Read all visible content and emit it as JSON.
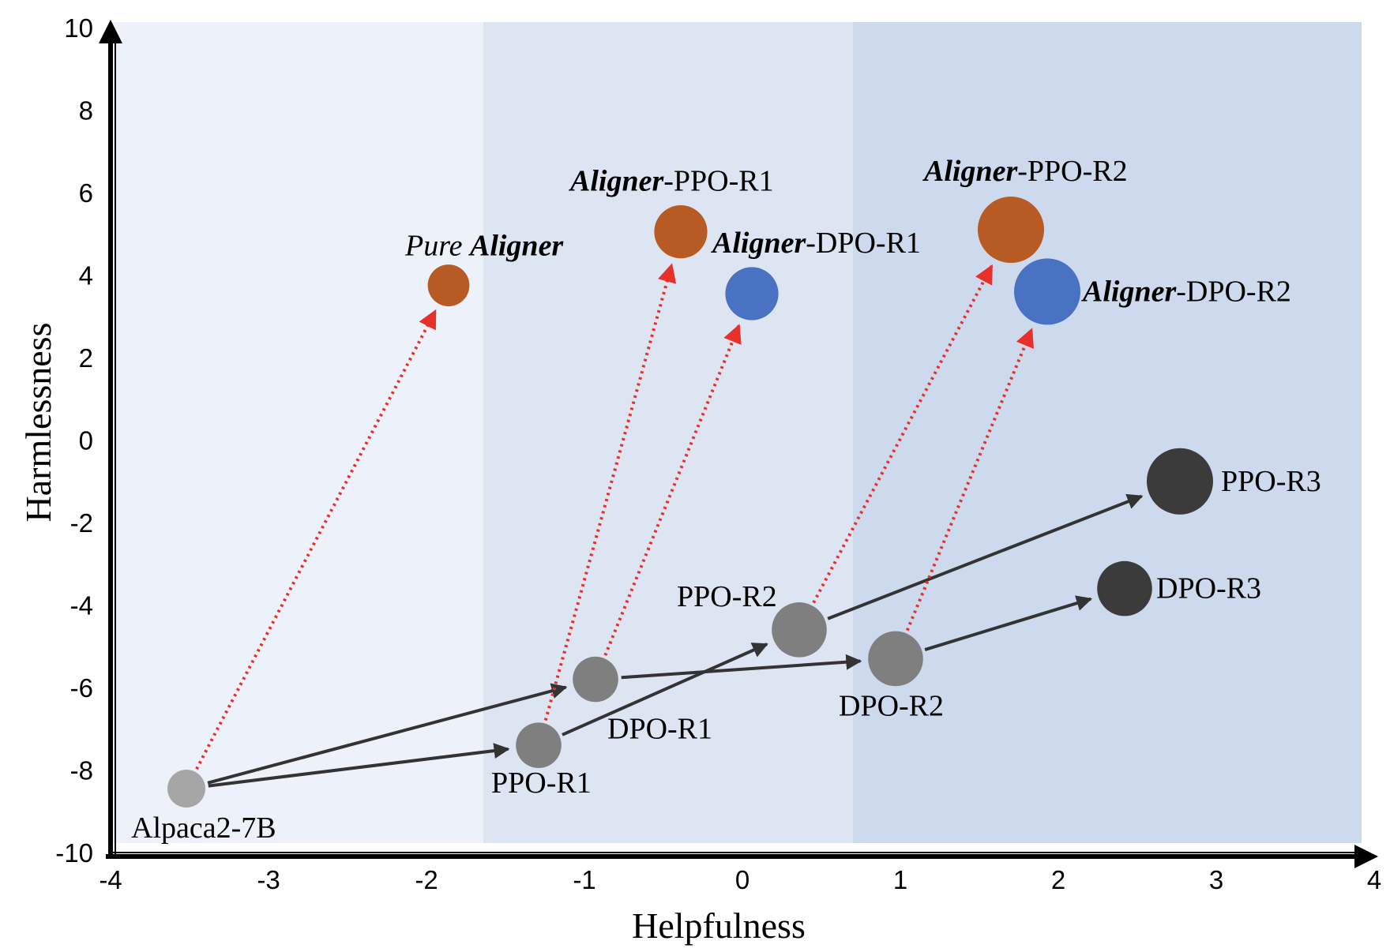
{
  "chart_data": {
    "type": "scatter",
    "xlabel": "Helpfulness",
    "ylabel": "Harmlessness",
    "xlim": [
      -4,
      4
    ],
    "ylim": [
      -10,
      10
    ],
    "x_ticks": [
      "-4",
      "-3",
      "-2",
      "-1",
      "0",
      "1",
      "2",
      "3",
      "4"
    ],
    "y_ticks": [
      "10",
      "8",
      "6",
      "4",
      "2",
      "0",
      "-2",
      "-4",
      "-6",
      "-8",
      "-10"
    ],
    "grid": false,
    "regions": [
      {
        "x_from": -4,
        "x_to": -1.64,
        "color": "#edf1f9"
      },
      {
        "x_from": -1.64,
        "x_to": 0.7,
        "color": "#dde4f2"
      },
      {
        "x_from": 0.7,
        "x_to": 4,
        "color": "#cdd9ec"
      }
    ],
    "points": [
      {
        "id": "alpaca",
        "x": -3.52,
        "y": -8.45,
        "size": 1.0,
        "color": "#a6a6a6",
        "label": [
          {
            "t": "Alpaca2-7B",
            "s": ""
          }
        ]
      },
      {
        "id": "ppo-r1",
        "x": -1.29,
        "y": -7.4,
        "size": 1.2,
        "color": "#7f7f7f",
        "label": [
          {
            "t": "PPO-R1",
            "s": ""
          }
        ]
      },
      {
        "id": "dpo-r1",
        "x": -0.93,
        "y": -5.8,
        "size": 1.2,
        "color": "#7f7f7f",
        "label": [
          {
            "t": "DPO-R1",
            "s": ""
          }
        ]
      },
      {
        "id": "ppo-r2",
        "x": 0.36,
        "y": -4.6,
        "size": 1.45,
        "color": "#7f7f7f",
        "label": [
          {
            "t": "PPO-R2",
            "s": ""
          }
        ]
      },
      {
        "id": "dpo-r2",
        "x": 0.97,
        "y": -5.3,
        "size": 1.45,
        "color": "#7f7f7f",
        "label": [
          {
            "t": "DPO-R2",
            "s": ""
          }
        ]
      },
      {
        "id": "ppo-r3",
        "x": 2.77,
        "y": -1.0,
        "size": 1.75,
        "color": "#3b3b3b",
        "label": [
          {
            "t": "PPO-R3",
            "s": ""
          }
        ]
      },
      {
        "id": "dpo-r3",
        "x": 2.42,
        "y": -3.6,
        "size": 1.45,
        "color": "#3b3b3b",
        "label": [
          {
            "t": "DPO-R3",
            "s": ""
          }
        ]
      },
      {
        "id": "pure-aligner",
        "x": -1.86,
        "y": 3.75,
        "size": 1.1,
        "color": "#b85a24",
        "label": [
          {
            "t": "Pure ",
            "s": "i"
          },
          {
            "t": "Aligner",
            "s": "b"
          }
        ]
      },
      {
        "id": "aligner-ppo-r1",
        "x": -0.39,
        "y": 5.05,
        "size": 1.4,
        "color": "#b85a24",
        "label": [
          {
            "t": "Aligner",
            "s": "b"
          },
          {
            "t": "-PPO-R1",
            "s": ""
          }
        ]
      },
      {
        "id": "aligner-dpo-r1",
        "x": 0.06,
        "y": 3.55,
        "size": 1.4,
        "color": "#4a72c2",
        "label": [
          {
            "t": "Aligner",
            "s": "b"
          },
          {
            "t": "-DPO-R1",
            "s": ""
          }
        ]
      },
      {
        "id": "aligner-ppo-r2",
        "x": 1.7,
        "y": 5.1,
        "size": 1.75,
        "color": "#b85a24",
        "label": [
          {
            "t": "Aligner",
            "s": "b"
          },
          {
            "t": "-PPO-R2",
            "s": ""
          }
        ]
      },
      {
        "id": "aligner-dpo-r2",
        "x": 1.93,
        "y": 3.6,
        "size": 1.75,
        "color": "#4a72c2",
        "label": [
          {
            "t": "Aligner",
            "s": "b"
          },
          {
            "t": "-DPO-R2",
            "s": ""
          }
        ]
      }
    ],
    "arrows": [
      {
        "from": "alpaca",
        "to": "ppo-r1",
        "style": "solid",
        "color": "#333333"
      },
      {
        "from": "alpaca",
        "to": "dpo-r1",
        "style": "solid",
        "color": "#333333"
      },
      {
        "from": "ppo-r1",
        "to": "ppo-r2",
        "style": "solid",
        "color": "#333333"
      },
      {
        "from": "dpo-r1",
        "to": "dpo-r2",
        "style": "solid",
        "color": "#333333"
      },
      {
        "from": "ppo-r2",
        "to": "ppo-r3",
        "style": "solid",
        "color": "#333333"
      },
      {
        "from": "dpo-r2",
        "to": "dpo-r3",
        "style": "solid",
        "color": "#333333"
      },
      {
        "from": "alpaca",
        "to": "pure-aligner",
        "style": "dotted",
        "color": "#e8302a"
      },
      {
        "from": "ppo-r1",
        "to": "aligner-ppo-r1",
        "style": "dotted",
        "color": "#e8302a"
      },
      {
        "from": "dpo-r1",
        "to": "aligner-dpo-r1",
        "style": "dotted",
        "color": "#e8302a"
      },
      {
        "from": "ppo-r2",
        "to": "aligner-ppo-r2",
        "style": "dotted",
        "color": "#e8302a"
      },
      {
        "from": "dpo-r2",
        "to": "aligner-dpo-r2",
        "style": "dotted",
        "color": "#e8302a"
      }
    ]
  }
}
